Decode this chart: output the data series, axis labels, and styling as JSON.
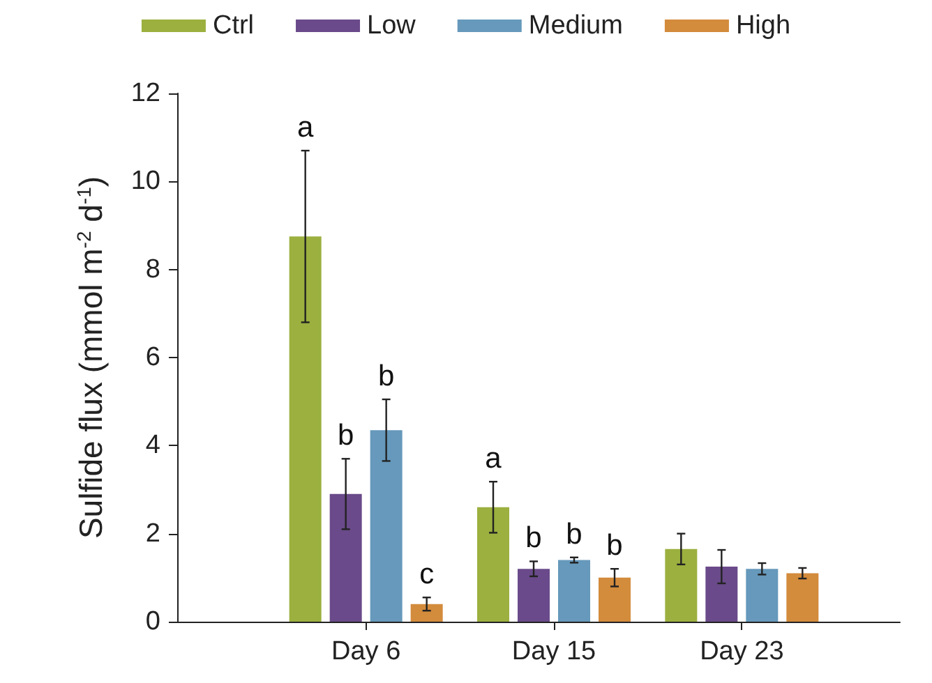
{
  "chart_data": {
    "type": "bar",
    "ylabel": "Sulfide flux (mmol m$^{-2}$ d$^{-1}$)",
    "categories": [
      "Day 6",
      "Day 15",
      "Day 23"
    ],
    "series": [
      {
        "name": "Ctrl",
        "color": "#9bb03f",
        "values": [
          8.75,
          2.6,
          1.65
        ],
        "errors": [
          1.95,
          0.58,
          0.35
        ],
        "value_labels": [
          "a",
          "a",
          null
        ]
      },
      {
        "name": "Low",
        "color": "#6a4a8a",
        "values": [
          2.9,
          1.2,
          1.25
        ],
        "errors": [
          0.8,
          0.17,
          0.38
        ],
        "value_labels": [
          "b",
          "b",
          null
        ]
      },
      {
        "name": "Medium",
        "color": "#6699bb",
        "values": [
          4.35,
          1.4,
          1.2
        ],
        "errors": [
          0.7,
          0.06,
          0.13
        ],
        "value_labels": [
          "b",
          "b",
          null
        ]
      },
      {
        "name": "High",
        "color": "#d38b3c",
        "values": [
          0.4,
          1.0,
          1.1
        ],
        "errors": [
          0.15,
          0.2,
          0.12
        ],
        "value_labels": [
          "c",
          "b",
          null
        ]
      }
    ],
    "ylim": [
      0,
      12
    ],
    "yticks": [
      0,
      2,
      4,
      6,
      8,
      10,
      12
    ],
    "grid": false,
    "legend": "top"
  }
}
